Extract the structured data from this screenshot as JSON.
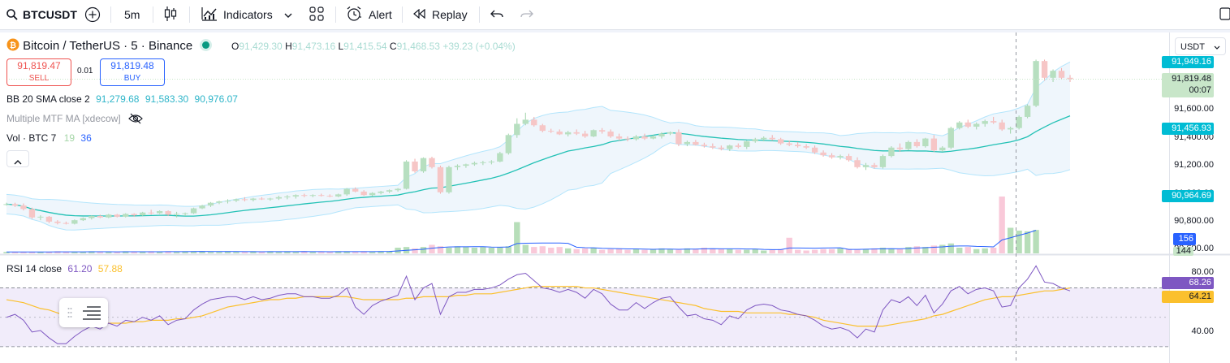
{
  "toolbar": {
    "symbol": "BTCUSDT",
    "interval": "5m",
    "indicators_label": "Indicators",
    "alert_label": "Alert",
    "replay_label": "Replay"
  },
  "legend": {
    "title": "Bitcoin / TetherUS · 5 · Binance",
    "o_label": "O",
    "o_val": "91,429.30",
    "h_label": "H",
    "h_val": "91,473.16",
    "l_label": "L",
    "l_val": "91,415.54",
    "c_label": "C",
    "c_val": "91,468.53",
    "change": "+39.23 (+0.04%)",
    "sell_price": "91,819.47",
    "sell_label": "SELL",
    "spread": "0.01",
    "buy_price": "91,819.48",
    "buy_label": "BUY",
    "bb_label": "BB 20 SMA close 2",
    "bb_v1": "91,279.68",
    "bb_v2": "91,583.30",
    "bb_v3": "90,976.07",
    "mtf_label": "Multiple MTF MA [xdecow]",
    "vol_label": "Vol · BTC 7",
    "vol_v1": "19",
    "vol_v2": "36",
    "rsi_label": "RSI 14 close",
    "rsi_v1": "61.20",
    "rsi_v2": "57.88"
  },
  "price_scale": {
    "currency": "USDT",
    "ticks": [
      "91,600.00",
      "91,400.00",
      "91,200.00",
      "91,000.00",
      "90,800.00",
      "90,600.00"
    ],
    "tag_top": "91,949.16",
    "tag_last": "91,819.48",
    "countdown": "00:07",
    "tag_upper": "91,456.93",
    "tag_lower": "90,964.69",
    "tag_vol_ma": "156",
    "tag_vol": "144"
  },
  "rsi_scale": {
    "ticks": [
      "80.00",
      "40.00"
    ],
    "tag_rsi": "68.26",
    "tag_rsi_ma": "64.21"
  },
  "colors": {
    "up": "#26a69a",
    "down": "#ef5350",
    "bb_mid": "#22c1b5",
    "bb_fill": "#e8f2fb",
    "rsi": "#7e57c2",
    "rsi_ma": "#fbc02d",
    "vol_ma": "#2962ff"
  },
  "chart_data": {
    "type": "candlestick",
    "price_range": [
      90590,
      91980
    ],
    "series": [
      {
        "name": "candles",
        "ohlc": [
          [
            90925,
            90935,
            90915,
            90925
          ],
          [
            90925,
            90935,
            90905,
            90915
          ],
          [
            90915,
            90930,
            90880,
            90890
          ],
          [
            90890,
            90900,
            90820,
            90830
          ],
          [
            90830,
            90845,
            90810,
            90835
          ],
          [
            90835,
            90840,
            90790,
            90800
          ],
          [
            90800,
            90810,
            90780,
            90790
          ],
          [
            90790,
            90800,
            90780,
            90785
          ],
          [
            90785,
            90815,
            90780,
            90810
          ],
          [
            90810,
            90830,
            90805,
            90825
          ],
          [
            90825,
            90845,
            90815,
            90840
          ],
          [
            90840,
            90850,
            90825,
            90830
          ],
          [
            90830,
            90855,
            90825,
            90850
          ],
          [
            90850,
            90855,
            90830,
            90835
          ],
          [
            90835,
            90860,
            90830,
            90855
          ],
          [
            90855,
            90860,
            90835,
            90845
          ],
          [
            90845,
            90870,
            90840,
            90865
          ],
          [
            90865,
            90885,
            90850,
            90860
          ],
          [
            90860,
            90880,
            90855,
            90875
          ],
          [
            90875,
            90880,
            90840,
            90850
          ],
          [
            90850,
            90870,
            90830,
            90855
          ],
          [
            90855,
            90865,
            90840,
            90860
          ],
          [
            90860,
            90900,
            90855,
            90895
          ],
          [
            90895,
            90920,
            90890,
            90915
          ],
          [
            90915,
            90940,
            90905,
            90935
          ],
          [
            90935,
            90950,
            90925,
            90945
          ],
          [
            90945,
            90960,
            90930,
            90950
          ],
          [
            90950,
            90965,
            90940,
            90960
          ],
          [
            90960,
            90975,
            90945,
            90955
          ],
          [
            90955,
            90970,
            90945,
            90965
          ],
          [
            90965,
            90975,
            90955,
            90960
          ],
          [
            90960,
            90970,
            90950,
            90965
          ],
          [
            90965,
            90985,
            90955,
            90975
          ],
          [
            90975,
            90990,
            90960,
            90980
          ],
          [
            90980,
            90995,
            90965,
            90990
          ],
          [
            90990,
            91000,
            90975,
            90985
          ],
          [
            90985,
            90995,
            90975,
            90990
          ],
          [
            90990,
            91000,
            90980,
            90985
          ],
          [
            90985,
            90995,
            90975,
            90980
          ],
          [
            90980,
            91000,
            90975,
            90995
          ],
          [
            90995,
            91040,
            90985,
            91035
          ],
          [
            91035,
            91045,
            91010,
            91015
          ],
          [
            91015,
            91025,
            90985,
            90990
          ],
          [
            90990,
            91010,
            90980,
            91005
          ],
          [
            91005,
            91020,
            90995,
            91015
          ],
          [
            91015,
            91030,
            91005,
            91025
          ],
          [
            91025,
            91040,
            91015,
            91035
          ],
          [
            91035,
            91240,
            91030,
            91230
          ],
          [
            91230,
            91250,
            91150,
            91160
          ],
          [
            91160,
            91260,
            91150,
            91255
          ],
          [
            91255,
            91265,
            91180,
            91190
          ],
          [
            91190,
            91200,
            91000,
            91010
          ],
          [
            91010,
            91200,
            91000,
            91190
          ],
          [
            91190,
            91210,
            91170,
            91200
          ],
          [
            91200,
            91215,
            91185,
            91210
          ],
          [
            91210,
            91230,
            91200,
            91220
          ],
          [
            91220,
            91235,
            91205,
            91225
          ],
          [
            91225,
            91240,
            91210,
            91230
          ],
          [
            91230,
            91300,
            91225,
            91290
          ],
          [
            91290,
            91430,
            91280,
            91420
          ],
          [
            91420,
            91540,
            91400,
            91500
          ],
          [
            91500,
            91580,
            91490,
            91530
          ],
          [
            91530,
            91550,
            91480,
            91490
          ],
          [
            91490,
            91500,
            91440,
            91450
          ],
          [
            91450,
            91465,
            91435,
            91445
          ],
          [
            91445,
            91460,
            91420,
            91425
          ],
          [
            91425,
            91450,
            91410,
            91440
          ],
          [
            91440,
            91460,
            91420,
            91430
          ],
          [
            91430,
            91450,
            91400,
            91410
          ],
          [
            91410,
            91460,
            91405,
            91455
          ],
          [
            91455,
            91470,
            91430,
            91445
          ],
          [
            91445,
            91460,
            91400,
            91410
          ],
          [
            91410,
            91430,
            91380,
            91395
          ],
          [
            91395,
            91410,
            91375,
            91390
          ],
          [
            91390,
            91420,
            91380,
            91410
          ],
          [
            91410,
            91430,
            91385,
            91395
          ],
          [
            91395,
            91420,
            91390,
            91410
          ],
          [
            91410,
            91440,
            91395,
            91430
          ],
          [
            91430,
            91445,
            91420,
            91440
          ],
          [
            91440,
            91460,
            91340,
            91355
          ],
          [
            91355,
            91380,
            91340,
            91370
          ],
          [
            91370,
            91385,
            91345,
            91350
          ],
          [
            91350,
            91365,
            91330,
            91340
          ],
          [
            91340,
            91360,
            91320,
            91330
          ],
          [
            91330,
            91345,
            91310,
            91320
          ],
          [
            91320,
            91350,
            91305,
            91345
          ],
          [
            91345,
            91360,
            91325,
            91335
          ],
          [
            91335,
            91380,
            91320,
            91375
          ],
          [
            91375,
            91400,
            91365,
            91390
          ],
          [
            91390,
            91410,
            91375,
            91400
          ],
          [
            91400,
            91420,
            91380,
            91390
          ],
          [
            91390,
            91400,
            91350,
            91360
          ],
          [
            91360,
            91380,
            91340,
            91350
          ],
          [
            91350,
            91370,
            91330,
            91340
          ],
          [
            91340,
            91355,
            91320,
            91330
          ],
          [
            91330,
            91345,
            91285,
            91295
          ],
          [
            91295,
            91310,
            91265,
            91275
          ],
          [
            91275,
            91290,
            91250,
            91260
          ],
          [
            91260,
            91280,
            91245,
            91270
          ],
          [
            91270,
            91285,
            91230,
            91240
          ],
          [
            91240,
            91260,
            91180,
            91190
          ],
          [
            91190,
            91220,
            91170,
            91205
          ],
          [
            91205,
            91220,
            91180,
            91190
          ],
          [
            91190,
            91280,
            91180,
            91270
          ],
          [
            91270,
            91340,
            91260,
            91330
          ],
          [
            91330,
            91360,
            91300,
            91320
          ],
          [
            91320,
            91380,
            91310,
            91370
          ],
          [
            91370,
            91390,
            91330,
            91340
          ],
          [
            91340,
            91400,
            91330,
            91395
          ],
          [
            91395,
            91420,
            91300,
            91310
          ],
          [
            91310,
            91340,
            91300,
            91330
          ],
          [
            91330,
            91480,
            91320,
            91470
          ],
          [
            91470,
            91520,
            91460,
            91510
          ],
          [
            91510,
            91530,
            91470,
            91480
          ],
          [
            91480,
            91510,
            91460,
            91500
          ],
          [
            91500,
            91530,
            91480,
            91520
          ],
          [
            91520,
            91550,
            91500,
            91510
          ],
          [
            91510,
            91530,
            91450,
            91460
          ],
          [
            91460,
            91480,
            91430,
            91470
          ],
          [
            91470,
            91560,
            91460,
            91550
          ],
          [
            91550,
            91640,
            91540,
            91630
          ],
          [
            91630,
            91960,
            91620,
            91950
          ],
          [
            91950,
            91960,
            91810,
            91830
          ],
          [
            91830,
            91890,
            91800,
            91880
          ],
          [
            91880,
            91900,
            91820,
            91830
          ],
          [
            91830,
            91850,
            91800,
            91820
          ]
        ]
      },
      {
        "name": "volume",
        "values": [
          2,
          2,
          2,
          2,
          2,
          2,
          3,
          2,
          2,
          2,
          3,
          2,
          2,
          2,
          3,
          2,
          2,
          3,
          2,
          3,
          2,
          3,
          3,
          3,
          2,
          2,
          3,
          2,
          2,
          3,
          2,
          3,
          2,
          3,
          2,
          3,
          2,
          2,
          2,
          3,
          3,
          2,
          3,
          2,
          3,
          3,
          8,
          9,
          7,
          9,
          12,
          10,
          8,
          10,
          9,
          8,
          9,
          8,
          9,
          10,
          44,
          12,
          9,
          10,
          8,
          9,
          7,
          6,
          7,
          8,
          5,
          6,
          7,
          5,
          6,
          5,
          6,
          7,
          6,
          5,
          7,
          6,
          8,
          7,
          6,
          6,
          5,
          5,
          6,
          4,
          5,
          6,
          22,
          5,
          4,
          5,
          6,
          6,
          7,
          6,
          5,
          6,
          7,
          8,
          7,
          6,
          9,
          10,
          9,
          11,
          12,
          14,
          8,
          9,
          6,
          7,
          8,
          80,
          36,
          32,
          31,
          33
        ]
      },
      {
        "name": "rsi",
        "values": [
          50,
          52,
          48,
          40,
          41,
          36,
          32,
          32,
          37,
          41,
          44,
          42,
          46,
          44,
          48,
          47,
          50,
          48,
          51,
          45,
          48,
          49,
          55,
          59,
          62,
          63,
          64,
          64,
          62,
          64,
          62,
          63,
          65,
          66,
          66,
          64,
          64,
          63,
          63,
          65,
          70,
          57,
          52,
          58,
          61,
          63,
          65,
          78,
          62,
          70,
          73,
          52,
          64,
          67,
          67,
          69,
          69,
          70,
          72,
          76,
          79,
          80,
          75,
          70,
          69,
          67,
          69,
          67,
          63,
          69,
          66,
          59,
          55,
          55,
          60,
          56,
          60,
          63,
          64,
          57,
          51,
          52,
          49,
          48,
          45,
          51,
          49,
          55,
          58,
          59,
          58,
          55,
          54,
          52,
          51,
          48,
          44,
          42,
          43,
          41,
          36,
          42,
          40,
          55,
          62,
          60,
          64,
          58,
          65,
          53,
          59,
          68,
          71,
          66,
          69,
          70,
          68,
          57,
          58,
          70,
          76,
          85,
          74,
          73,
          70,
          68
        ]
      },
      {
        "name": "rsi_ma",
        "values": [
          62,
          61,
          60,
          58,
          56,
          55,
          53,
          51,
          49,
          48,
          47,
          46,
          46,
          46,
          46,
          47,
          47,
          48,
          48,
          48,
          49,
          49,
          50,
          51,
          53,
          55,
          57,
          58,
          59,
          60,
          61,
          62,
          62,
          63,
          63,
          64,
          64,
          64,
          64,
          64,
          64,
          63,
          62,
          62,
          62,
          62,
          62,
          63,
          63,
          64,
          64,
          64,
          64,
          65,
          65,
          66,
          66,
          66,
          67,
          68,
          69,
          70,
          71,
          71,
          71,
          71,
          71,
          71,
          70,
          70,
          69,
          68,
          67,
          66,
          65,
          64,
          63,
          62,
          61,
          60,
          59,
          58,
          56,
          55,
          54,
          54,
          54,
          53,
          53,
          53,
          53,
          53,
          52,
          52,
          51,
          50,
          48,
          47,
          46,
          45,
          44,
          44,
          44,
          44,
          45,
          46,
          47,
          48,
          49,
          51,
          52,
          54,
          56,
          58,
          60,
          62,
          63,
          64,
          64,
          65,
          66,
          67,
          68,
          68,
          69,
          70
        ]
      }
    ],
    "rsi_range": [
      20,
      88
    ],
    "rsi_levels": [
      70,
      50,
      30
    ]
  }
}
